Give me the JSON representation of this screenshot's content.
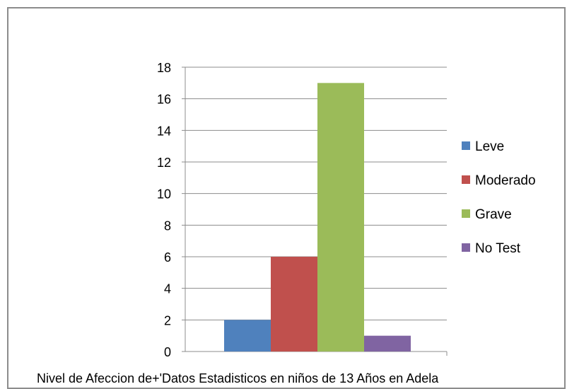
{
  "chart_data": {
    "type": "bar",
    "title": "",
    "xlabel": "Nivel de Afeccion de+'Datos Estadisticos en niños de 13 Años en Adela",
    "ylabel": "",
    "ylim": [
      0,
      18
    ],
    "yticks": [
      0,
      2,
      4,
      6,
      8,
      10,
      12,
      14,
      16,
      18
    ],
    "grid": true,
    "legend_position": "right",
    "series": [
      {
        "name": "Leve",
        "values": [
          2
        ],
        "color": "#4f81bd"
      },
      {
        "name": "Moderado",
        "values": [
          6
        ],
        "color": "#c0504d"
      },
      {
        "name": "Grave",
        "values": [
          17
        ],
        "color": "#9bbb59"
      },
      {
        "name": "No Test",
        "values": [
          1
        ],
        "color": "#8064a2"
      }
    ]
  }
}
